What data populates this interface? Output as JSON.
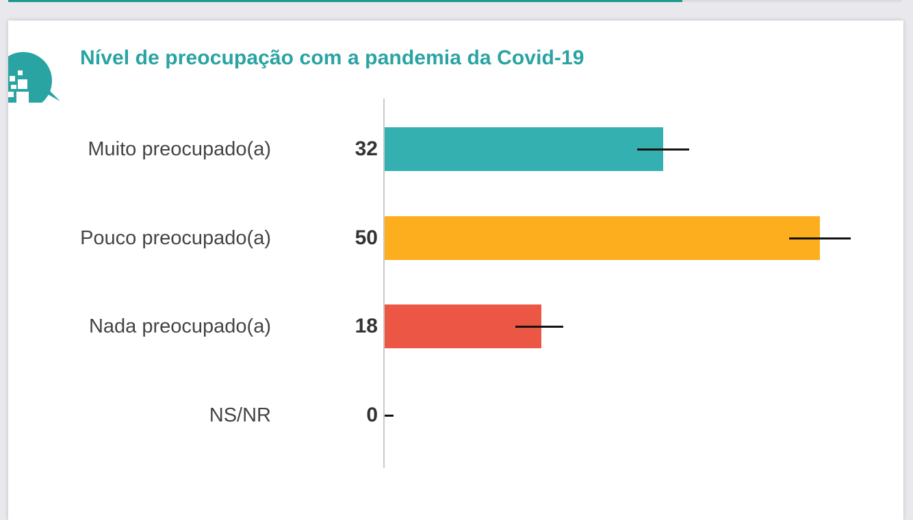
{
  "title": "Nível de preocupação com a pandemia da Covid-19",
  "logo": {
    "icon": "speech-bubble-q-logo-icon",
    "color": "#2aa3a3"
  },
  "chart_data": {
    "type": "bar",
    "orientation": "horizontal",
    "title": "Nível de preocupação com a pandemia da Covid-19",
    "xlabel": "",
    "ylabel": "",
    "xlim": [
      0,
      50
    ],
    "grid": false,
    "legend": null,
    "categories": [
      "Muito preocupado(a)",
      "Pouco preocupado(a)",
      "Nada preocupado(a)",
      "NS/NR"
    ],
    "values": [
      32,
      50,
      18,
      0
    ],
    "value_labels": [
      "32",
      "50",
      "18",
      "0"
    ],
    "colors": [
      "#35b0b0",
      "#fcae1e",
      "#ec5644",
      "#cccccc"
    ],
    "error_bars": [
      {
        "low": 29,
        "high": 35
      },
      {
        "low": 46.5,
        "high": 53.5
      },
      {
        "low": 15,
        "high": 20.5
      },
      {
        "low": 0,
        "high": 1
      }
    ]
  }
}
